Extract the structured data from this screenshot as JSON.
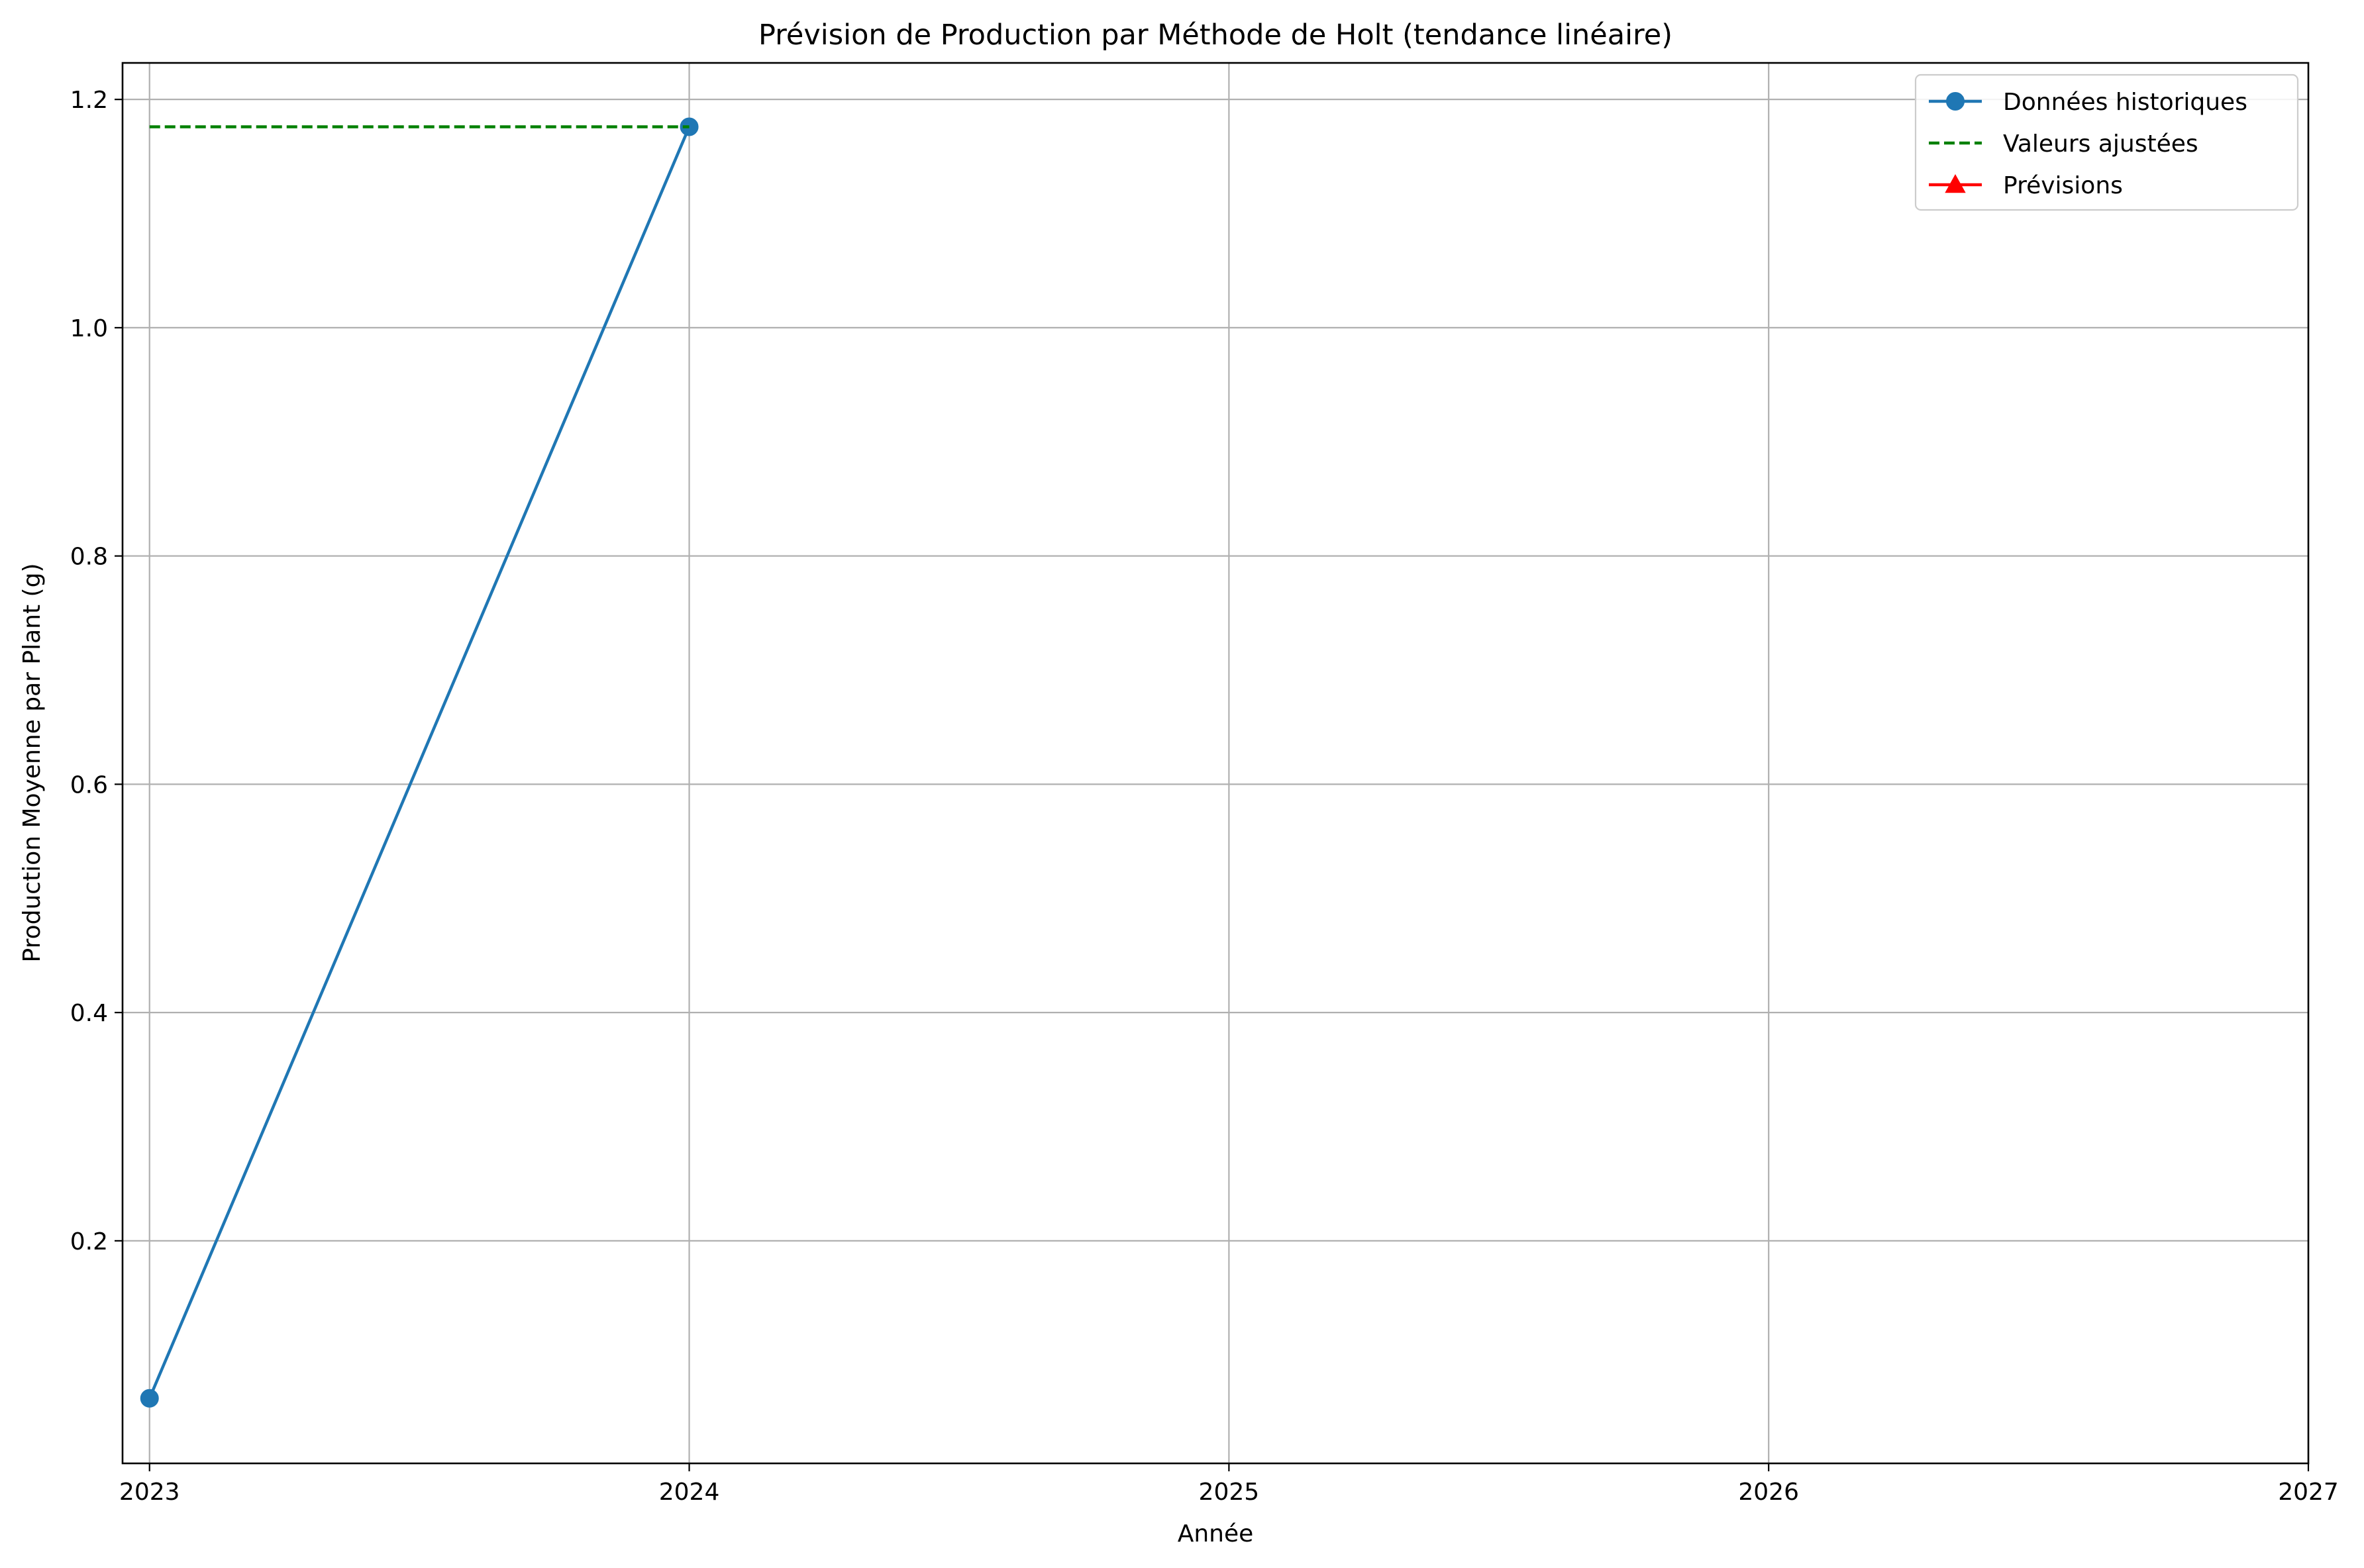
{
  "chart_data": {
    "type": "line",
    "title": "Prévision de Production par Méthode de Holt (tendance linéaire)",
    "xlabel": "Année",
    "ylabel": "Production Moyenne par Plant (g)",
    "xlim": [
      2022.95,
      2027
    ],
    "ylim": [
      0.005,
      1.232
    ],
    "x_ticks": [
      2023,
      2024,
      2025,
      2026,
      2027
    ],
    "x_tick_labels": [
      "2023",
      "2024",
      "2025",
      "2026",
      "2027"
    ],
    "y_ticks": [
      0.2,
      0.4,
      0.6,
      0.8,
      1.0,
      1.2
    ],
    "y_tick_labels": [
      "0.2",
      "0.4",
      "0.6",
      "0.8",
      "1.0",
      "1.2"
    ],
    "grid": true,
    "legend_position": "top-right",
    "series": [
      {
        "name": "Données historiques",
        "color": "#1f77b4",
        "style": "solid",
        "marker": "circle",
        "x": [
          2023,
          2024
        ],
        "values": [
          0.062,
          1.176
        ]
      },
      {
        "name": "Valeurs ajustées",
        "color": "#008000",
        "style": "dashed",
        "marker": "none",
        "x": [
          2023,
          2024
        ],
        "values": [
          1.176,
          1.176
        ]
      },
      {
        "name": "Prévisions",
        "color": "#ff0000",
        "style": "solid",
        "marker": "triangle",
        "x": [],
        "values": []
      }
    ]
  }
}
